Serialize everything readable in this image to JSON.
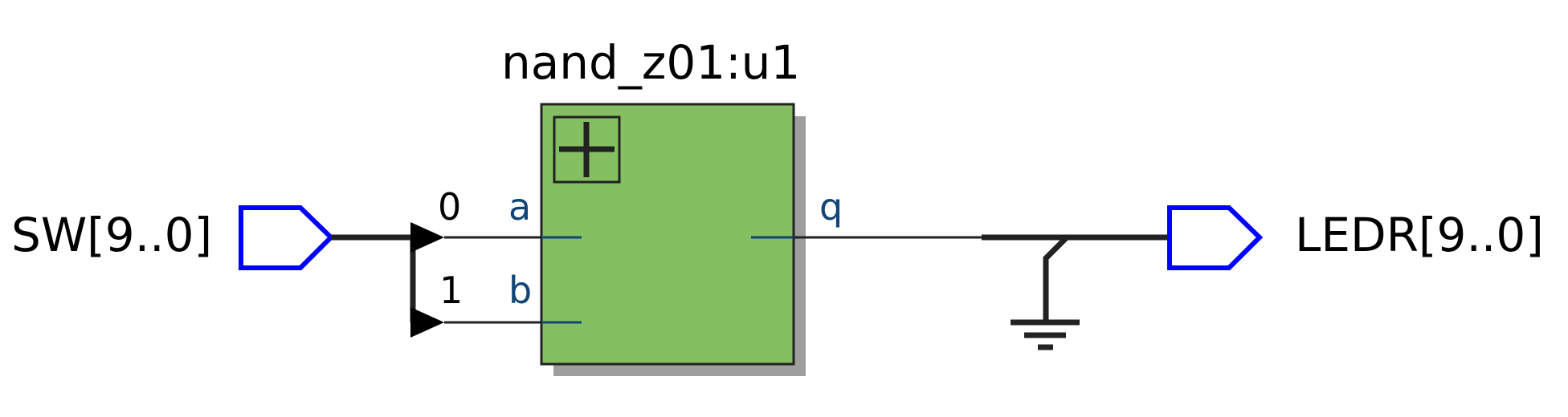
{
  "instance": {
    "label": "nand_z01:u1",
    "expand_icon": "plus-icon",
    "pins": {
      "input_a": "a",
      "input_b": "b",
      "output_q": "q"
    }
  },
  "input_port": {
    "label": "SW[9..0]",
    "icon": "input-port-icon"
  },
  "output_port": {
    "label": "LEDR[9..0]",
    "icon": "output-port-icon"
  },
  "bus_ripper": {
    "index_a": "0",
    "index_b": "1"
  },
  "ground": {
    "icon": "ground-icon"
  },
  "colors": {
    "block_fill": "#84c061",
    "block_shadow": "#9e9e9e",
    "port_outline": "#0000ff",
    "wire": "#222222",
    "pin_label": "#114477"
  }
}
